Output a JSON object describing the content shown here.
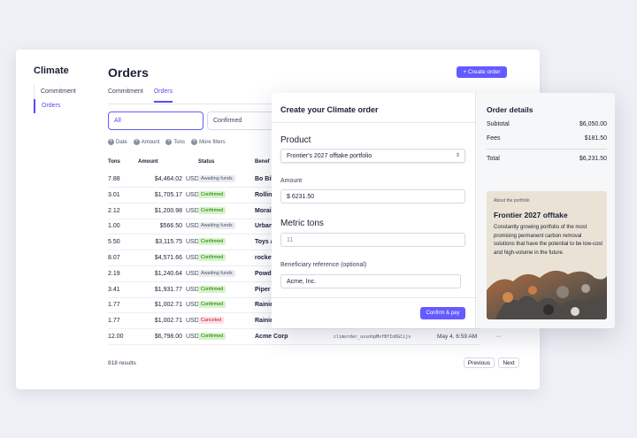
{
  "sidebar": {
    "brand": "Climate",
    "items": [
      {
        "label": "Commitment"
      },
      {
        "label": "Orders"
      }
    ]
  },
  "header": {
    "title": "Orders",
    "create_button": "+ Create order"
  },
  "tabs": [
    {
      "label": "Commitment"
    },
    {
      "label": "Orders"
    }
  ],
  "segments": {
    "all": "All",
    "confirmed": "Confirmed"
  },
  "filters": [
    {
      "label": "Date"
    },
    {
      "label": "Amount"
    },
    {
      "label": "Tons"
    },
    {
      "label": "More filters"
    }
  ],
  "table": {
    "columns": [
      "Tons",
      "Amount",
      "Status",
      "Benef"
    ],
    "rows": [
      {
        "tons": "7.88",
        "amount": "$4,464.02",
        "currency": "USD",
        "status": "Awaiting funds",
        "beneficiary": "Bo Bike",
        "status_class": "awaiting"
      },
      {
        "tons": "3.01",
        "amount": "$1,705.17",
        "currency": "USD",
        "status": "Confirmed",
        "beneficiary": "Rolling",
        "status_class": "confirmed"
      },
      {
        "tons": "2.12",
        "amount": "$1,200.98",
        "currency": "USD",
        "status": "Confirmed",
        "beneficiary": "Morai",
        "status_class": "confirmed"
      },
      {
        "tons": "1.00",
        "amount": "$566.50",
        "currency": "USD",
        "status": "Awaiting funds",
        "beneficiary": "Urban",
        "status_class": "awaiting"
      },
      {
        "tons": "5.50",
        "amount": "$3,115.75",
        "currency": "USD",
        "status": "Confirmed",
        "beneficiary": "Toys a",
        "status_class": "confirmed"
      },
      {
        "tons": "8.07",
        "amount": "$4,571.66",
        "currency": "USD",
        "status": "Confirmed",
        "beneficiary": "rocket",
        "status_class": "confirmed"
      },
      {
        "tons": "2.19",
        "amount": "$1,240.64",
        "currency": "USD",
        "status": "Awaiting funds",
        "beneficiary": "Powdl",
        "status_class": "awaiting"
      },
      {
        "tons": "3.41",
        "amount": "$1,931.77",
        "currency": "USD",
        "status": "Confirmed",
        "beneficiary": "Piper",
        "status_class": "confirmed"
      },
      {
        "tons": "1.77",
        "amount": "$1,002.71",
        "currency": "USD",
        "status": "Confirmed",
        "beneficiary": "Rainie",
        "status_class": "confirmed"
      },
      {
        "tons": "1.77",
        "amount": "$1,002.71",
        "currency": "USD",
        "status": "Canceled",
        "beneficiary": "Rainie",
        "status_class": "canceled"
      },
      {
        "tons": "12.00",
        "amount": "$6,798.00",
        "currency": "USD",
        "status": "Confirmed",
        "beneficiary": "Acme Corp",
        "status_class": "confirmed",
        "order_id": "climorder_usvnhpMxfBfInDGCijv",
        "date": "May 4, 6:59 AM",
        "more": "···"
      }
    ]
  },
  "footer": {
    "results": "818 results",
    "previous": "Previous",
    "next": "Next"
  },
  "modal": {
    "title": "Create your Climate order",
    "product_label": "Product",
    "product_value": "Frontier's 2027 offtake portfolio",
    "amount_label": "Amount",
    "amount_value": "$  6231.50",
    "tons_label": "Metric tons",
    "tons_value": "11",
    "beneficiary_label": "Beneficiary reference (optional)",
    "beneficiary_value": "Acme, Inc.",
    "confirm_button": "Confirm & pay"
  },
  "order_details": {
    "title": "Order details",
    "subtotal_label": "Subtotal",
    "subtotal_value": "$6,050.00",
    "fees_label": "Fees",
    "fees_value": "$181.50",
    "total_label": "Total",
    "total_value": "$6,231.50"
  },
  "portfolio": {
    "about": "About the portfolio",
    "title": "Frontier 2027 offtake",
    "description": "Constantly growing portfolio of the most promising permanent carbon removal solutions that have the potential to be low-cost and high-volume in the future."
  }
}
